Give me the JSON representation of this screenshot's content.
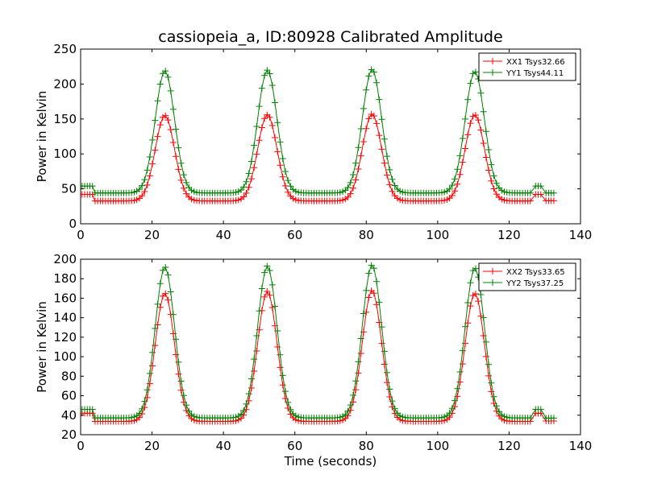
{
  "title": "cassiopeia_a, ID:80928 Calibrated Amplitude",
  "chart_data": [
    {
      "type": "line",
      "title": "cassiopeia_a, ID:80928 Calibrated Amplitude",
      "xlabel": "",
      "ylabel": "Power in Kelvin",
      "xlim": [
        0,
        140
      ],
      "ylim": [
        0,
        250
      ],
      "xticks": [
        0,
        20,
        40,
        60,
        80,
        100,
        120,
        140
      ],
      "yticks": [
        0,
        50,
        100,
        150,
        200,
        250
      ],
      "legend_position": "top-right",
      "grid": false,
      "series": [
        {
          "name": "XX1 Tsys32.66",
          "color": "#ff0000",
          "marker": "plus",
          "baseline": 32.66,
          "start_level": 42,
          "end_level": 33,
          "blip_level": 42,
          "peaks": [
            {
              "x": 23.6,
              "y": 155
            },
            {
              "x": 52.3,
              "y": 156
            },
            {
              "x": 81.6,
              "y": 157
            },
            {
              "x": 110.4,
              "y": 156
            }
          ]
        },
        {
          "name": "YY1 Tsys44.11",
          "color": "#008000",
          "marker": "plus",
          "baseline": 44.11,
          "start_level": 54,
          "end_level": 44,
          "blip_level": 54,
          "peaks": [
            {
              "x": 23.6,
              "y": 219
            },
            {
              "x": 52.3,
              "y": 220
            },
            {
              "x": 81.6,
              "y": 221
            },
            {
              "x": 110.4,
              "y": 218
            }
          ]
        }
      ]
    },
    {
      "type": "line",
      "title": "",
      "xlabel": "Time (seconds)",
      "ylabel": "Power in Kelvin",
      "xlim": [
        0,
        140
      ],
      "ylim": [
        20,
        200
      ],
      "xticks": [
        0,
        20,
        40,
        60,
        80,
        100,
        120,
        140
      ],
      "yticks": [
        20,
        40,
        60,
        80,
        100,
        120,
        140,
        160,
        180,
        200
      ],
      "legend_position": "top-right",
      "grid": false,
      "series": [
        {
          "name": "XX2 Tsys33.65",
          "color": "#ff0000",
          "marker": "plus",
          "baseline": 33.65,
          "start_level": 42,
          "end_level": 34,
          "blip_level": 42,
          "peaks": [
            {
              "x": 23.6,
              "y": 165
            },
            {
              "x": 52.3,
              "y": 167
            },
            {
              "x": 81.6,
              "y": 168
            },
            {
              "x": 110.4,
              "y": 165
            }
          ]
        },
        {
          "name": "YY2 Tsys37.25",
          "color": "#008000",
          "marker": "plus",
          "baseline": 37.25,
          "start_level": 46,
          "end_level": 37,
          "blip_level": 46,
          "peaks": [
            {
              "x": 23.6,
              "y": 192
            },
            {
              "x": 52.3,
              "y": 193
            },
            {
              "x": 81.6,
              "y": 194
            },
            {
              "x": 110.4,
              "y": 191
            }
          ]
        }
      ]
    }
  ]
}
